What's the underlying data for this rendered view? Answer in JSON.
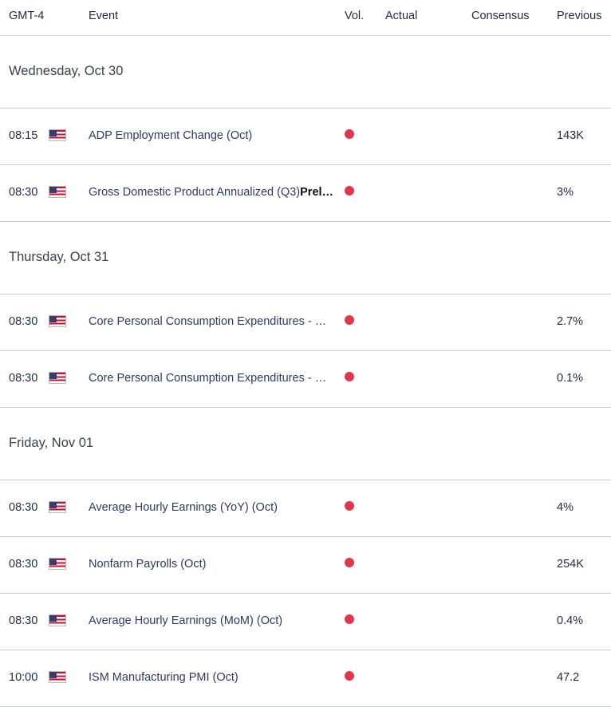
{
  "table_header": {
    "timezone": "GMT-4",
    "event": "Event",
    "vol": "Vol.",
    "actual": "Actual",
    "consensus": "Consensus",
    "previous": "Previous"
  },
  "days": [
    {
      "label": "Wednesday, Oct 30",
      "events": [
        {
          "time": "08:15",
          "country": "us-flag-icon",
          "event": "ADP Employment Change (Oct)",
          "event_bold": "",
          "volatility": "high",
          "actual": "",
          "consensus": "",
          "previous": "143K"
        },
        {
          "time": "08:30",
          "country": "us-flag-icon",
          "event": "Gross Domestic Product Annualized (Q3)",
          "event_bold": "Prel…",
          "volatility": "high",
          "actual": "",
          "consensus": "",
          "previous": "3%"
        }
      ]
    },
    {
      "label": "Thursday, Oct 31",
      "events": [
        {
          "time": "08:30",
          "country": "us-flag-icon",
          "event": "Core Personal Consumption Expenditures - …",
          "event_bold": "",
          "volatility": "high",
          "actual": "",
          "consensus": "",
          "previous": "2.7%"
        },
        {
          "time": "08:30",
          "country": "us-flag-icon",
          "event": "Core Personal Consumption Expenditures - …",
          "event_bold": "",
          "volatility": "high",
          "actual": "",
          "consensus": "",
          "previous": "0.1%"
        }
      ]
    },
    {
      "label": "Friday, Nov 01",
      "events": [
        {
          "time": "08:30",
          "country": "us-flag-icon",
          "event": "Average Hourly Earnings (YoY) (Oct)",
          "event_bold": "",
          "volatility": "high",
          "actual": "",
          "consensus": "",
          "previous": "4%"
        },
        {
          "time": "08:30",
          "country": "us-flag-icon",
          "event": "Nonfarm Payrolls (Oct)",
          "event_bold": "",
          "volatility": "high",
          "actual": "",
          "consensus": "",
          "previous": "254K"
        },
        {
          "time": "08:30",
          "country": "us-flag-icon",
          "event": "Average Hourly Earnings (MoM) (Oct)",
          "event_bold": "",
          "volatility": "high",
          "actual": "",
          "consensus": "",
          "previous": "0.4%"
        },
        {
          "time": "10:00",
          "country": "us-flag-icon",
          "event": "ISM Manufacturing PMI (Oct)",
          "event_bold": "",
          "volatility": "high",
          "actual": "",
          "consensus": "",
          "previous": "47.2"
        }
      ]
    }
  ],
  "colors": {
    "high_volatility": "#e1364c",
    "event_text": "#2c3a66",
    "divider": "#c9ccd4"
  }
}
